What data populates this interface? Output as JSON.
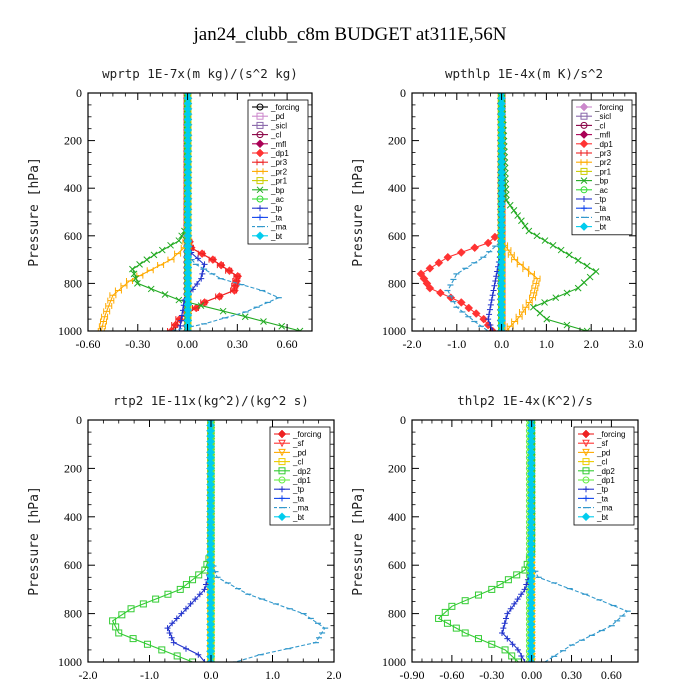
{
  "figure_title": "jan24_clubb_c8m  BUDGET at311E,56N",
  "chart_data": [
    {
      "type": "line",
      "title": "wprtp  1E-7x(m kg)/(s^2 kg)",
      "ylabel": "Pressure [hPa]",
      "xlim": [
        -0.6,
        0.75
      ],
      "ylim": [
        0,
        1000
      ],
      "xticks": [
        -0.6,
        -0.3,
        0,
        0.3,
        0.6
      ],
      "xtick_labels": [
        "-0.60",
        "-0.30",
        "0.00",
        "0.30",
        "0.60"
      ],
      "yticks": [
        0,
        200,
        400,
        600,
        800,
        1000
      ],
      "ytick_labels": [
        "0",
        "200",
        "400",
        "600",
        "800",
        "1000"
      ],
      "legend_position": "top-right",
      "series": [
        {
          "name": "_forcing",
          "color": "#000000",
          "marker": "circle",
          "x": [
            0,
            0
          ],
          "y": [
            0,
            1000
          ]
        },
        {
          "name": "_pd",
          "color": "#cc88cc",
          "marker": "square",
          "x": [
            0,
            0
          ],
          "y": [
            0,
            1000
          ]
        },
        {
          "name": "_sicl",
          "color": "#8866aa",
          "marker": "square",
          "x": [
            0,
            0
          ],
          "y": [
            0,
            1000
          ]
        },
        {
          "name": "_cl",
          "color": "#880044",
          "marker": "circle",
          "x": [
            0,
            0
          ],
          "y": [
            0,
            1000
          ]
        },
        {
          "name": "_mfl",
          "color": "#aa0055",
          "marker": "diamond",
          "x": [
            0,
            0
          ],
          "y": [
            0,
            1000
          ]
        },
        {
          "name": "_dp1",
          "color": "#ff3333",
          "marker": "diamond",
          "x": [
            0,
            0,
            0.02,
            0.15,
            0.3,
            0.28,
            0.1,
            -0.05,
            -0.1
          ],
          "y": [
            0,
            600,
            650,
            700,
            770,
            830,
            880,
            950,
            1000
          ]
        },
        {
          "name": "_pr3",
          "color": "#ee2222",
          "marker": "bar",
          "x": [
            0,
            0,
            0.02,
            0.15,
            0.3,
            0.28,
            0.1,
            -0.05,
            -0.1
          ],
          "y": [
            0,
            600,
            650,
            700,
            770,
            830,
            880,
            950,
            1000
          ]
        },
        {
          "name": "_pr2",
          "color": "#ffaa00",
          "marker": "bar",
          "x": [
            0,
            0,
            -0.02,
            -0.1,
            -0.35,
            -0.45,
            -0.5,
            -0.52
          ],
          "y": [
            0,
            600,
            650,
            700,
            790,
            850,
            940,
            1000
          ]
        },
        {
          "name": "_pr1",
          "color": "#cccc00",
          "marker": "square",
          "x": [
            0,
            0
          ],
          "y": [
            0,
            1000
          ]
        },
        {
          "name": "_bp",
          "color": "#22aa22",
          "marker": "x",
          "x": [
            0,
            0,
            -0.05,
            -0.2,
            -0.33,
            -0.3,
            -0.05,
            0.35,
            0.68
          ],
          "y": [
            0,
            560,
            620,
            680,
            740,
            800,
            870,
            940,
            1000
          ]
        },
        {
          "name": "_ac",
          "color": "#33dd33",
          "marker": "circle",
          "x": [
            0,
            0
          ],
          "y": [
            0,
            1000
          ]
        },
        {
          "name": "_tp",
          "color": "#2233cc",
          "marker": "plus",
          "x": [
            0,
            0,
            0.02,
            0.1,
            0.08,
            -0.02,
            -0.05
          ],
          "y": [
            0,
            620,
            670,
            720,
            780,
            870,
            1000
          ]
        },
        {
          "name": "_ta",
          "color": "#1144ee",
          "marker": "plus",
          "x": [
            0,
            0
          ],
          "y": [
            0,
            1000
          ]
        },
        {
          "name": "_ma",
          "color": "#3399cc",
          "marker": "dash",
          "x": [
            0,
            0,
            0.05,
            0.2,
            0.45,
            0.55,
            0.35,
            0.1,
            -0.1
          ],
          "y": [
            0,
            680,
            720,
            780,
            830,
            860,
            920,
            970,
            1000
          ]
        },
        {
          "name": "_bt",
          "color": "#00ccee",
          "marker": "diamond",
          "x": [
            0,
            0
          ],
          "y": [
            0,
            1000
          ]
        }
      ]
    },
    {
      "type": "line",
      "title": "wpthlp  1E-4x(m K)/s^2",
      "ylabel": "Pressure [hPa]",
      "xlim": [
        -2.0,
        3.0
      ],
      "ylim": [
        0,
        1000
      ],
      "xticks": [
        -2,
        -1,
        0,
        1,
        2,
        3
      ],
      "xtick_labels": [
        "-2.0",
        "-1.0",
        "0.0",
        "1.0",
        "2.0",
        "3.0"
      ],
      "yticks": [
        0,
        200,
        400,
        600,
        800,
        1000
      ],
      "ytick_labels": [
        "0",
        "200",
        "400",
        "600",
        "800",
        "1000"
      ],
      "legend_position": "top-right",
      "series": [
        {
          "name": "_forcing",
          "color": "#cc88cc",
          "marker": "diamond",
          "x": [
            0,
            0
          ],
          "y": [
            0,
            1000
          ]
        },
        {
          "name": "_sicl",
          "color": "#8866aa",
          "marker": "square",
          "x": [
            0,
            0
          ],
          "y": [
            0,
            1000
          ]
        },
        {
          "name": "_cl",
          "color": "#880044",
          "marker": "circle",
          "x": [
            0,
            0
          ],
          "y": [
            0,
            1000
          ]
        },
        {
          "name": "_mfl",
          "color": "#aa0055",
          "marker": "diamond",
          "x": [
            0,
            0
          ],
          "y": [
            0,
            1000
          ]
        },
        {
          "name": "_dp1",
          "color": "#ff3333",
          "marker": "diamond",
          "x": [
            0,
            0,
            -0.3,
            -1.2,
            -1.8,
            -1.6,
            -0.9,
            -0.4,
            -0.2
          ],
          "y": [
            0,
            580,
            630,
            690,
            760,
            820,
            880,
            950,
            1000
          ]
        },
        {
          "name": "_pr3",
          "color": "#ee2222",
          "marker": "bar",
          "x": [
            0,
            0
          ],
          "y": [
            0,
            1000
          ]
        },
        {
          "name": "_pr2",
          "color": "#ffaa00",
          "marker": "bar",
          "x": [
            0,
            0,
            0.3,
            0.8,
            0.7,
            0.4,
            0.1
          ],
          "y": [
            0,
            620,
            700,
            780,
            860,
            940,
            1000
          ]
        },
        {
          "name": "_pr1",
          "color": "#cccc00",
          "marker": "square",
          "x": [
            0,
            0
          ],
          "y": [
            0,
            1000
          ]
        },
        {
          "name": "_bp",
          "color": "#22aa22",
          "marker": "x",
          "x": [
            0,
            0.1,
            0.6,
            1.5,
            2.1,
            1.7,
            0.7,
            1.0,
            1.9
          ],
          "y": [
            0,
            450,
            580,
            680,
            750,
            820,
            900,
            950,
            1000
          ]
        },
        {
          "name": "_ac",
          "color": "#33dd33",
          "marker": "circle",
          "x": [
            0,
            0
          ],
          "y": [
            0,
            1000
          ]
        },
        {
          "name": "_tp",
          "color": "#2233cc",
          "marker": "plus",
          "x": [
            0,
            0,
            -0.1,
            -0.2,
            -0.3,
            -0.2
          ],
          "y": [
            0,
            650,
            750,
            850,
            950,
            1000
          ]
        },
        {
          "name": "_ta",
          "color": "#1144ee",
          "marker": "plus",
          "x": [
            0,
            0
          ],
          "y": [
            0,
            1000
          ]
        },
        {
          "name": "_ma",
          "color": "#3399cc",
          "marker": "dash",
          "x": [
            0,
            0,
            -0.4,
            -1.0,
            -1.2,
            -1.0,
            -0.6,
            -0.3
          ],
          "y": [
            0,
            620,
            690,
            760,
            830,
            900,
            960,
            1000
          ]
        },
        {
          "name": "_bt",
          "color": "#00ccee",
          "marker": "diamond",
          "x": [
            0,
            0
          ],
          "y": [
            0,
            1000
          ]
        }
      ]
    },
    {
      "type": "line",
      "title": "rtp2  1E-11x(kg^2)/(kg^2 s)",
      "ylabel": "Pressure [hPa]",
      "xlim": [
        -2.0,
        2.0
      ],
      "ylim": [
        0,
        1000
      ],
      "xticks": [
        -2,
        -1,
        0,
        1,
        2
      ],
      "xtick_labels": [
        "-2.0",
        "-1.0",
        "0.0",
        "1.0",
        "2.0"
      ],
      "yticks": [
        0,
        200,
        400,
        600,
        800,
        1000
      ],
      "ytick_labels": [
        "0",
        "200",
        "400",
        "600",
        "800",
        "1000"
      ],
      "legend_position": "top-right",
      "series": [
        {
          "name": "_forcing",
          "color": "#ee2222",
          "marker": "diamond",
          "x": [
            0,
            0
          ],
          "y": [
            0,
            1000
          ]
        },
        {
          "name": "_sf",
          "color": "#ff3333",
          "marker": "triangle",
          "x": [
            0,
            0
          ],
          "y": [
            0,
            1000
          ]
        },
        {
          "name": "_pd",
          "color": "#ffaa00",
          "marker": "triangle",
          "x": [
            0,
            0
          ],
          "y": [
            0,
            1000
          ]
        },
        {
          "name": "_cl",
          "color": "#eecc00",
          "marker": "square",
          "x": [
            0,
            0
          ],
          "y": [
            0,
            1000
          ]
        },
        {
          "name": "_dp2",
          "color": "#33cc33",
          "marker": "square",
          "x": [
            0,
            0,
            -0.1,
            -0.5,
            -1.3,
            -1.6,
            -1.5,
            -0.8,
            -0.3
          ],
          "y": [
            0,
            550,
            620,
            700,
            780,
            830,
            880,
            950,
            1000
          ]
        },
        {
          "name": "_dp1",
          "color": "#66ee44",
          "marker": "circle",
          "x": [
            0,
            0
          ],
          "y": [
            0,
            1000
          ]
        },
        {
          "name": "_tp",
          "color": "#2233cc",
          "marker": "plus",
          "x": [
            0,
            0,
            -0.1,
            -0.4,
            -0.7,
            -0.6,
            -0.2,
            -0.1
          ],
          "y": [
            0,
            620,
            700,
            780,
            860,
            920,
            970,
            1000
          ]
        },
        {
          "name": "_ta",
          "color": "#1144ee",
          "marker": "plus",
          "x": [
            0,
            0
          ],
          "y": [
            0,
            1000
          ]
        },
        {
          "name": "_ma",
          "color": "#3399cc",
          "marker": "dash",
          "x": [
            0,
            0,
            0.1,
            0.6,
            1.5,
            1.85,
            1.7,
            0.8,
            0.4
          ],
          "y": [
            0,
            580,
            650,
            720,
            800,
            860,
            920,
            970,
            1000
          ]
        },
        {
          "name": "_bt",
          "color": "#00ccee",
          "marker": "diamond",
          "x": [
            0,
            0
          ],
          "y": [
            0,
            1000
          ]
        }
      ]
    },
    {
      "type": "line",
      "title": "thlp2  1E-4x(K^2)/s",
      "ylabel": "Pressure [hPa]",
      "xlim": [
        -0.9,
        0.8
      ],
      "ylim": [
        0,
        1000
      ],
      "xticks": [
        -0.9,
        -0.6,
        -0.3,
        0,
        0.3,
        0.6
      ],
      "xtick_labels": [
        "-0.90",
        "-0.60",
        "-0.30",
        "0.00",
        "0.30",
        "0.60"
      ],
      "yticks": [
        0,
        200,
        400,
        600,
        800,
        1000
      ],
      "ytick_labels": [
        "0",
        "200",
        "400",
        "600",
        "800",
        "1000"
      ],
      "legend_position": "top-right",
      "series": [
        {
          "name": "_forcing",
          "color": "#ee2222",
          "marker": "diamond",
          "x": [
            0,
            0
          ],
          "y": [
            0,
            1000
          ]
        },
        {
          "name": "_sf",
          "color": "#ff3333",
          "marker": "triangle",
          "x": [
            0,
            0
          ],
          "y": [
            0,
            1000
          ]
        },
        {
          "name": "_pd",
          "color": "#ffaa00",
          "marker": "triangle",
          "x": [
            0,
            0
          ],
          "y": [
            0,
            1000
          ]
        },
        {
          "name": "_cl",
          "color": "#eecc00",
          "marker": "square",
          "x": [
            0,
            0
          ],
          "y": [
            0,
            1000
          ]
        },
        {
          "name": "_dp2",
          "color": "#33cc33",
          "marker": "square",
          "x": [
            0,
            0,
            -0.05,
            -0.3,
            -0.6,
            -0.7,
            -0.5,
            -0.2,
            -0.1
          ],
          "y": [
            0,
            550,
            620,
            700,
            770,
            820,
            880,
            950,
            1000
          ]
        },
        {
          "name": "_dp1",
          "color": "#66ee44",
          "marker": "circle",
          "x": [
            -0.02,
            -0.02
          ],
          "y": [
            0,
            1000
          ]
        },
        {
          "name": "_tp",
          "color": "#2233cc",
          "marker": "plus",
          "x": [
            0,
            0,
            -0.05,
            -0.18,
            -0.22,
            -0.1,
            -0.05
          ],
          "y": [
            0,
            620,
            700,
            800,
            880,
            950,
            1000
          ]
        },
        {
          "name": "_ta",
          "color": "#1144ee",
          "marker": "plus",
          "x": [
            0,
            0
          ],
          "y": [
            0,
            1000
          ]
        },
        {
          "name": "_ma",
          "color": "#3399cc",
          "marker": "dash",
          "x": [
            0,
            0,
            0.05,
            0.4,
            0.72,
            0.6,
            0.3,
            0.1
          ],
          "y": [
            0,
            600,
            650,
            720,
            790,
            850,
            930,
            1000
          ]
        },
        {
          "name": "_bt",
          "color": "#00ccee",
          "marker": "diamond",
          "x": [
            0,
            0
          ],
          "y": [
            0,
            1000
          ]
        }
      ]
    }
  ]
}
